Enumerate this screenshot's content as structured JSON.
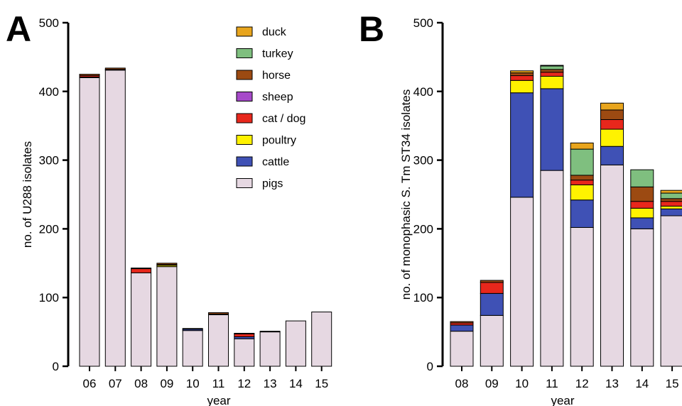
{
  "series_colors": {
    "pigs": "#e6d8e2",
    "cattle": "#3f51b5",
    "poultry": "#fff200",
    "cat / dog": "#e8271c",
    "sheep": "#a64ac9",
    "horse": "#9c4a12",
    "turkey": "#7fbf7f",
    "duck": "#e8a51d"
  },
  "legend": {
    "placement": "top-right of panel A",
    "items": [
      "duck",
      "turkey",
      "horse",
      "sheep",
      "cat / dog",
      "poultry",
      "cattle",
      "pigs"
    ]
  },
  "chart_data": [
    {
      "type": "bar",
      "stacked": true,
      "panel_label": "A",
      "title": "",
      "xlabel": "year",
      "ylabel": "no. of U288 isolates",
      "ylim": [
        0,
        500
      ],
      "yticks": [
        0,
        100,
        200,
        300,
        400,
        500
      ],
      "grid": false,
      "categories": [
        "06",
        "07",
        "08",
        "09",
        "10",
        "11",
        "12",
        "13",
        "14",
        "15"
      ],
      "series": [
        {
          "name": "pigs",
          "values": [
            420,
            431,
            136,
            145,
            52,
            75,
            40,
            50,
            66,
            79
          ]
        },
        {
          "name": "cattle",
          "values": [
            0,
            0,
            0,
            0,
            2,
            0,
            3,
            0,
            0,
            0
          ]
        },
        {
          "name": "poultry",
          "values": [
            1,
            0,
            0,
            2,
            0,
            0,
            0,
            0,
            0,
            0
          ]
        },
        {
          "name": "cat / dog",
          "values": [
            2,
            1,
            6,
            1,
            0,
            1,
            4,
            0,
            0,
            0
          ]
        },
        {
          "name": "sheep",
          "values": [
            0,
            0,
            0,
            0,
            0,
            0,
            0,
            0,
            0,
            0
          ]
        },
        {
          "name": "horse",
          "values": [
            2,
            2,
            1,
            2,
            1,
            2,
            1,
            1,
            0,
            0
          ]
        },
        {
          "name": "turkey",
          "values": [
            0,
            0,
            0,
            0,
            0,
            0,
            0,
            0,
            0,
            0
          ]
        },
        {
          "name": "duck",
          "values": [
            0,
            0,
            0,
            0,
            0,
            0,
            0,
            0,
            0,
            0
          ]
        }
      ]
    },
    {
      "type": "bar",
      "stacked": true,
      "panel_label": "B",
      "title": "",
      "xlabel": "year",
      "ylabel": "no. of monophasic S. Tm ST34 isolates",
      "ylim": [
        0,
        500
      ],
      "yticks": [
        0,
        100,
        200,
        300,
        400,
        500
      ],
      "grid": false,
      "categories": [
        "08",
        "09",
        "10",
        "11",
        "12",
        "13",
        "14",
        "15"
      ],
      "series": [
        {
          "name": "pigs",
          "values": [
            51,
            74,
            246,
            285,
            202,
            293,
            200,
            219
          ]
        },
        {
          "name": "cattle",
          "values": [
            9,
            32,
            152,
            119,
            40,
            27,
            16,
            10
          ]
        },
        {
          "name": "poultry",
          "values": [
            0,
            0,
            18,
            18,
            22,
            25,
            14,
            4
          ]
        },
        {
          "name": "cat / dog",
          "values": [
            3,
            16,
            7,
            6,
            7,
            14,
            10,
            7
          ]
        },
        {
          "name": "sheep",
          "values": [
            0,
            0,
            0,
            0,
            0,
            0,
            0,
            0
          ]
        },
        {
          "name": "horse",
          "values": [
            2,
            3,
            4,
            4,
            7,
            14,
            21,
            4
          ]
        },
        {
          "name": "turkey",
          "values": [
            0,
            0,
            0,
            5,
            38,
            0,
            25,
            8
          ]
        },
        {
          "name": "duck",
          "values": [
            0,
            0,
            3,
            1,
            9,
            10,
            0,
            4
          ]
        }
      ]
    }
  ]
}
